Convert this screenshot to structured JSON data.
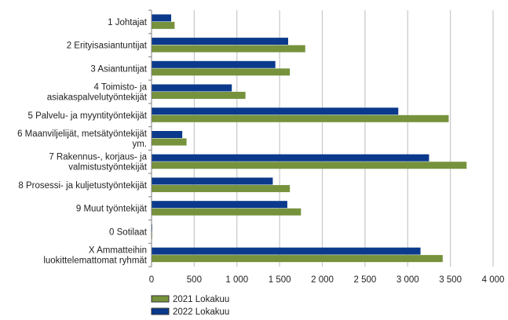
{
  "chart_data": {
    "type": "bar",
    "orientation": "horizontal",
    "categories": [
      [
        "1 Johtajat"
      ],
      [
        "2 Erityisasiantuntijat"
      ],
      [
        "3 Asiantuntijat"
      ],
      [
        "4 Toimisto- ja",
        "asiakaspalvelutyöntekijät"
      ],
      [
        "5 Palvelu- ja myyntityöntekijät"
      ],
      [
        "6 Maanviljelijät, metsätyöntekijät",
        "ym."
      ],
      [
        "7 Rakennus-, korjaus- ja",
        "valmistustyöntekijät"
      ],
      [
        "8 Prosessi- ja kuljetustyöntekijät"
      ],
      [
        "9 Muut työntekijät"
      ],
      [
        "0 Sotilaat"
      ],
      [
        "X Ammatteihin",
        "luokittelemattomat ryhmät"
      ]
    ],
    "series": [
      {
        "name": "2022 Lokakuu",
        "color": "#0b3a8c",
        "values": [
          230,
          1600,
          1450,
          940,
          2890,
          360,
          3250,
          1420,
          1590,
          8,
          3150
        ]
      },
      {
        "name": "2021 Lokakuu",
        "color": "#76923c",
        "values": [
          270,
          1800,
          1620,
          1100,
          3480,
          410,
          3690,
          1620,
          1750,
          8,
          3410
        ]
      }
    ],
    "xlim": [
      0,
      4000
    ],
    "xticks": [
      0,
      500,
      1000,
      1500,
      2000,
      2500,
      3000,
      3500,
      4000
    ],
    "xtick_labels": [
      "0",
      "500",
      "1 000",
      "1 500",
      "2 000",
      "2 500",
      "3 000",
      "3 500",
      "4 000"
    ],
    "grid": true,
    "legend_position": "bottom-left",
    "legend_order": [
      "2021 Lokakuu",
      "2022 Lokakuu"
    ],
    "title": "",
    "xlabel": "",
    "ylabel": ""
  }
}
